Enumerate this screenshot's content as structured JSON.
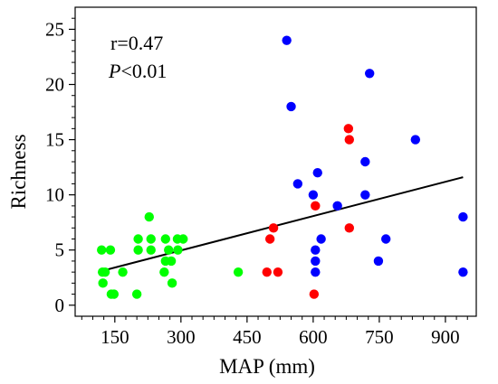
{
  "chart_data": {
    "type": "scatter",
    "title": "",
    "xlabel": "MAP (mm)",
    "ylabel": "Richness",
    "xlim": [
      60,
      970
    ],
    "ylim": [
      -1,
      27
    ],
    "xticks": [
      150,
      300,
      450,
      600,
      750,
      900
    ],
    "yticks": [
      0,
      5,
      10,
      15,
      20,
      25
    ],
    "grid": false,
    "annotations": {
      "r_text": "r=0.47",
      "p_symbol": "P",
      "p_rest": "<0.01"
    },
    "trendline": {
      "x": [
        120,
        940
      ],
      "y": [
        3.1,
        11.6
      ],
      "color": "#000000"
    },
    "series": [
      {
        "color": "#00ff00",
        "points": [
          [
            120,
            5
          ],
          [
            122,
            3
          ],
          [
            123,
            2
          ],
          [
            128,
            3
          ],
          [
            140,
            5
          ],
          [
            142,
            1
          ],
          [
            148,
            1
          ],
          [
            168,
            3
          ],
          [
            200,
            1
          ],
          [
            203,
            5
          ],
          [
            203,
            6
          ],
          [
            228,
            8
          ],
          [
            232,
            6
          ],
          [
            232,
            5
          ],
          [
            262,
            3
          ],
          [
            265,
            6
          ],
          [
            265,
            4
          ],
          [
            272,
            5
          ],
          [
            278,
            4
          ],
          [
            280,
            2
          ],
          [
            292,
            6
          ],
          [
            293,
            5
          ],
          [
            305,
            6
          ],
          [
            430,
            3
          ]
        ]
      },
      {
        "color": "#ff0000",
        "points": [
          [
            495,
            3
          ],
          [
            502,
            6
          ],
          [
            510,
            7
          ],
          [
            520,
            3
          ],
          [
            602,
            1
          ],
          [
            605,
            9
          ],
          [
            680,
            16
          ],
          [
            682,
            15
          ],
          [
            682,
            7
          ]
        ]
      },
      {
        "color": "#0000ff",
        "points": [
          [
            540,
            24
          ],
          [
            550,
            18
          ],
          [
            565,
            11
          ],
          [
            600,
            10
          ],
          [
            605,
            5
          ],
          [
            605,
            4
          ],
          [
            605,
            3
          ],
          [
            610,
            12
          ],
          [
            618,
            6
          ],
          [
            655,
            9
          ],
          [
            718,
            10
          ],
          [
            718,
            13
          ],
          [
            728,
            21
          ],
          [
            748,
            4
          ],
          [
            765,
            6
          ],
          [
            832,
            15
          ],
          [
            940,
            8
          ],
          [
            940,
            3
          ]
        ]
      }
    ]
  }
}
